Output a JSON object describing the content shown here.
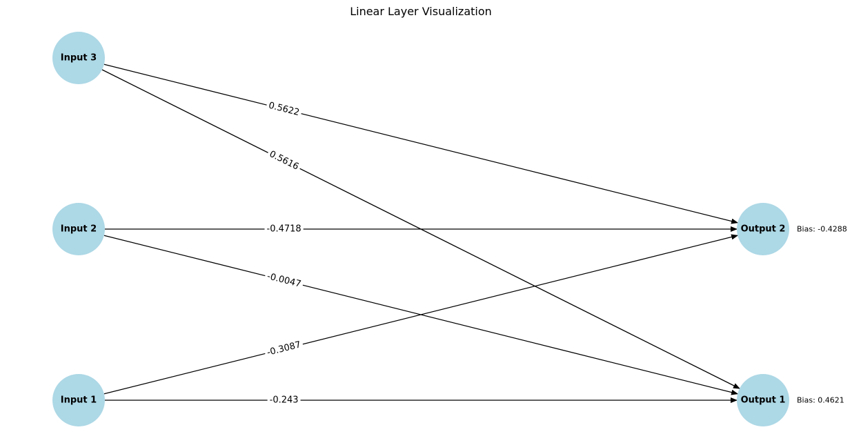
{
  "title": "Linear Layer Visualization",
  "colors": {
    "node_fill": "#add8e6",
    "edge": "#000000",
    "background": "#ffffff"
  },
  "nodes": [
    {
      "id": "input3",
      "label": "Input 3"
    },
    {
      "id": "input2",
      "label": "Input 2"
    },
    {
      "id": "input1",
      "label": "Input 1"
    },
    {
      "id": "output2",
      "label": "Output 2",
      "bias": "Bias: -0.4288"
    },
    {
      "id": "output1",
      "label": "Output 1",
      "bias": "Bias: 0.4621"
    }
  ],
  "edges": [
    {
      "from": "input3",
      "to": "output2",
      "weight": "0.5622"
    },
    {
      "from": "input3",
      "to": "output1",
      "weight": "0.5616"
    },
    {
      "from": "input2",
      "to": "output2",
      "weight": "-0.4718"
    },
    {
      "from": "input2",
      "to": "output1",
      "weight": "-0.0047"
    },
    {
      "from": "input1",
      "to": "output2",
      "weight": "-0.3087"
    },
    {
      "from": "input1",
      "to": "output1",
      "weight": "-0.243"
    }
  ]
}
